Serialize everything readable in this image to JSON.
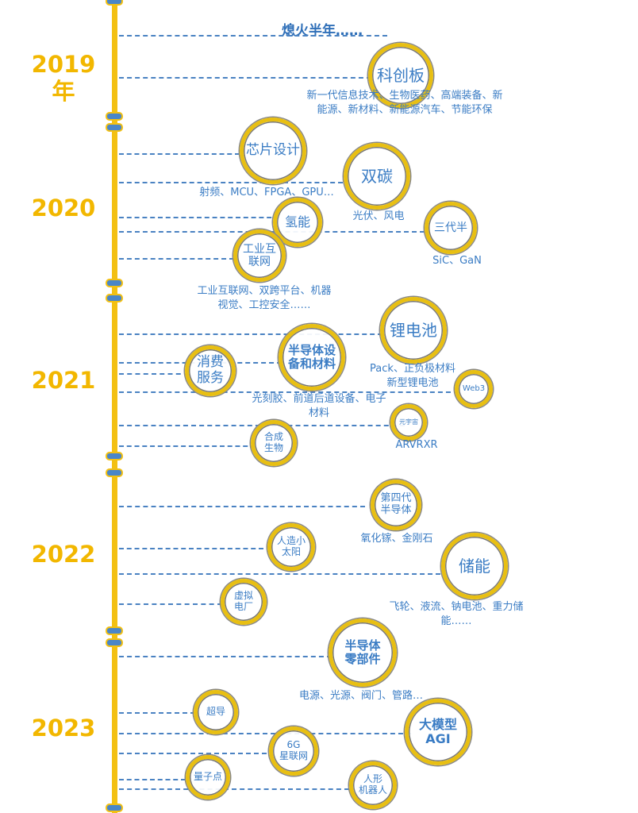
{
  "title": "熄火半年……",
  "years": [
    "2019\n年",
    "2020",
    "2021",
    "2022",
    "2023"
  ],
  "topics": [
    {
      "label": "科创板"
    },
    {
      "label": "芯片设计"
    },
    {
      "label": "双碳"
    },
    {
      "label": "氢能"
    },
    {
      "label": "三代半"
    },
    {
      "label": "工业互\n联网"
    },
    {
      "label": "锂电池"
    },
    {
      "label": "半导体设\n备和材料"
    },
    {
      "label": "消费\n服务"
    },
    {
      "label": "Web3"
    },
    {
      "label": "元宇宙"
    },
    {
      "label": "合成\n生物"
    },
    {
      "label": "第四代\n半导体"
    },
    {
      "label": "人造小\n太阳"
    },
    {
      "label": "储能"
    },
    {
      "label": "虚拟\n电厂"
    },
    {
      "label": "半导体\n零部件"
    },
    {
      "label": "超导"
    },
    {
      "label": "大模型\nAGI"
    },
    {
      "label": "6G\n星联网"
    },
    {
      "label": "量子点"
    },
    {
      "label": "人形\n机器人"
    }
  ],
  "notes": [
    "新一代信息技术、生物医药、高端装备、新\n能源、新材料、新能源汽车、节能环保",
    "射频、MCU、FPGA、GPU…",
    "光伏、风电",
    "SiC、GaN",
    "工业互联网、双跨平台、机器\n视觉、工控安全……",
    "Pack、正负极材料\n新型锂电池",
    "光刻胶、前道后道设备、电子\n材料",
    "ARVRXR",
    "氧化镓、金刚石",
    "飞轮、液流、钠电池、重力储\n能……",
    "电源、光源、阀门、管路…"
  ]
}
